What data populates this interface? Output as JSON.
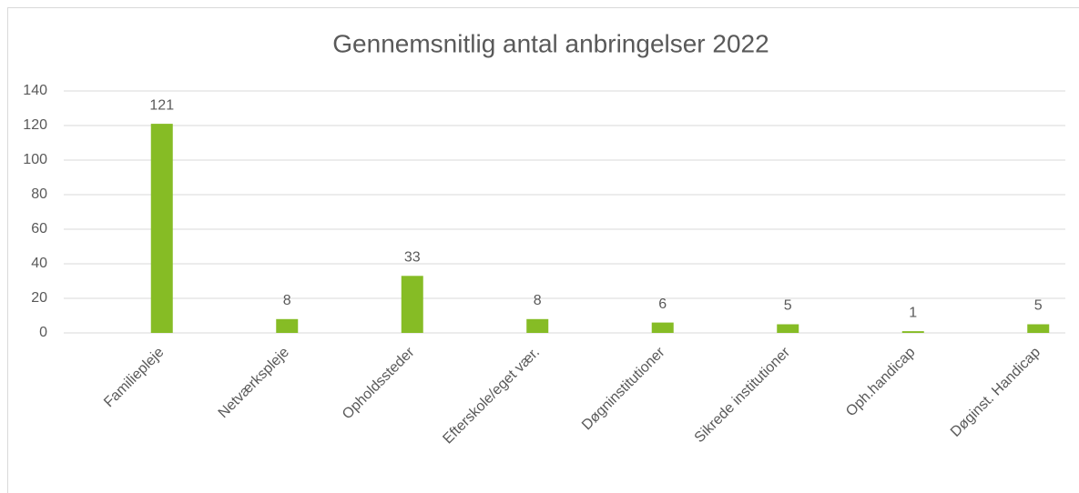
{
  "chart_data": {
    "type": "bar",
    "title": "Gennemsnitlig antal anbringelser 2022",
    "categories": [
      "Familiepleje",
      "Netværkspleje",
      "Opholdssteder",
      "Efterskole/eget vær.",
      "Døgninstitutioner",
      "Sikrede institutioner",
      "Oph.handicap",
      "Døginst. Handicap"
    ],
    "values": [
      121,
      8,
      33,
      8,
      6,
      5,
      1,
      5
    ],
    "color": "#86bc25",
    "ylim": [
      0,
      140
    ],
    "yticks": [
      0,
      20,
      40,
      60,
      80,
      100,
      120,
      140
    ],
    "grid": true
  }
}
